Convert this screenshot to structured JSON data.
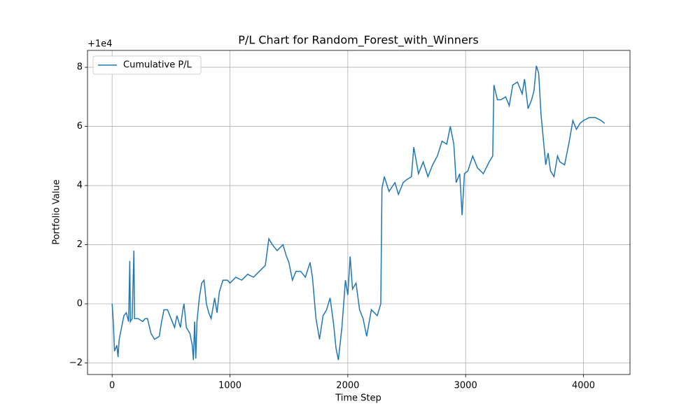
{
  "chart_data": {
    "type": "line",
    "title": "P/L Chart for Random_Forest_with_Winners",
    "x_label": "Time Step",
    "y_label": "Portfolio Value",
    "y_offset_text": "+1e4",
    "x": [
      0,
      10,
      20,
      40,
      50,
      60,
      80,
      100,
      120,
      140,
      150,
      155,
      170,
      185,
      190,
      220,
      260,
      280,
      300,
      330,
      360,
      400,
      420,
      440,
      470,
      500,
      530,
      550,
      580,
      600,
      610,
      630,
      660,
      680,
      690,
      700,
      710,
      720,
      740,
      760,
      780,
      800,
      820,
      840,
      870,
      890,
      910,
      940,
      980,
      1000,
      1050,
      1100,
      1150,
      1200,
      1250,
      1300,
      1330,
      1360,
      1400,
      1450,
      1480,
      1500,
      1530,
      1560,
      1600,
      1640,
      1680,
      1700,
      1730,
      1760,
      1790,
      1820,
      1850,
      1880,
      1900,
      1920,
      1950,
      1980,
      2000,
      2020,
      2040,
      2070,
      2100,
      2130,
      2160,
      2200,
      2250,
      2280,
      2290,
      2310,
      2350,
      2400,
      2430,
      2470,
      2500,
      2540,
      2560,
      2600,
      2640,
      2680,
      2720,
      2760,
      2800,
      2840,
      2870,
      2900,
      2920,
      2950,
      2970,
      2990,
      3020,
      3060,
      3100,
      3150,
      3200,
      3230,
      3240,
      3270,
      3300,
      3340,
      3370,
      3400,
      3440,
      3480,
      3500,
      3530,
      3560,
      3580,
      3600,
      3620,
      3640,
      3680,
      3700,
      3720,
      3750,
      3780,
      3800,
      3840,
      3880,
      3910,
      3940,
      3970,
      4000,
      4050,
      4100,
      4150,
      4180
    ],
    "series": [
      {
        "name": "Cumulative P/L",
        "color": "#1f77b4",
        "values": [
          0,
          -0.6,
          -1.6,
          -1.4,
          -1.8,
          -1.2,
          -0.8,
          -0.4,
          -0.3,
          -0.6,
          1.45,
          -0.6,
          -0.5,
          1.8,
          -0.5,
          -0.5,
          -0.6,
          -0.5,
          -0.5,
          -1.0,
          -1.2,
          -1.1,
          -0.6,
          -0.2,
          -0.2,
          -0.5,
          -0.8,
          -0.4,
          -0.8,
          -0.2,
          0.0,
          -0.8,
          -1.0,
          -1.4,
          -1.9,
          -0.6,
          -1.85,
          -0.6,
          0.2,
          0.7,
          0.8,
          0.0,
          -0.3,
          -0.5,
          0.2,
          -0.3,
          0.4,
          0.8,
          0.8,
          0.7,
          0.9,
          0.8,
          1.0,
          0.9,
          1.1,
          1.3,
          2.2,
          2.0,
          1.8,
          2.0,
          1.6,
          1.4,
          0.8,
          1.1,
          1.1,
          0.9,
          1.4,
          0.9,
          -0.5,
          -1.2,
          -0.4,
          -0.2,
          0.2,
          -0.7,
          -1.5,
          -1.9,
          -0.8,
          0.8,
          0.3,
          1.6,
          0.5,
          0.7,
          -0.2,
          -0.5,
          -1.1,
          -0.2,
          -0.4,
          0.0,
          3.9,
          4.3,
          3.8,
          4.1,
          3.7,
          4.1,
          4.2,
          4.3,
          5.3,
          4.4,
          4.8,
          4.3,
          4.7,
          5.0,
          5.5,
          5.4,
          6.0,
          5.4,
          4.1,
          4.4,
          3.0,
          4.4,
          4.5,
          5.0,
          4.6,
          4.4,
          4.8,
          5.0,
          7.4,
          6.9,
          6.9,
          7.0,
          6.7,
          7.4,
          7.5,
          7.1,
          7.6,
          6.6,
          6.9,
          7.2,
          8.05,
          7.8,
          6.4,
          4.7,
          5.1,
          4.5,
          4.3,
          5.0,
          4.8,
          4.7,
          5.5,
          6.2,
          5.9,
          6.1,
          6.2,
          6.3,
          6.3,
          6.2,
          6.1
        ]
      }
    ],
    "xlim": [
      -209,
      4395
    ],
    "ylim": [
      -2.39,
      8.57
    ],
    "xticks": [
      0,
      1000,
      2000,
      3000,
      4000
    ],
    "yticks": [
      {
        "value": -2,
        "label": "−2"
      },
      0,
      2,
      4,
      6,
      8
    ],
    "grid": true,
    "legend": "upper left"
  }
}
